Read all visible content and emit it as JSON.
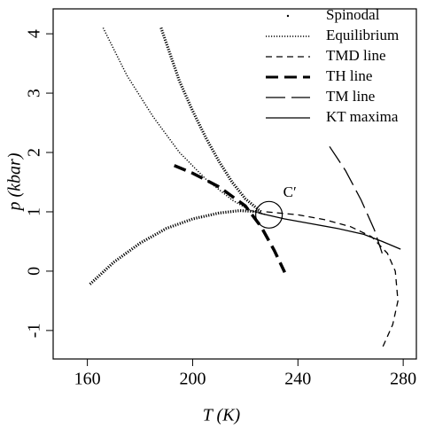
{
  "chart_data": {
    "type": "line",
    "xlabel": "T (K)",
    "ylabel": "p (kbar)",
    "xlim": [
      147,
      285
    ],
    "ylim": [
      -1.48,
      4.42
    ],
    "xticks": [
      160,
      200,
      240,
      280
    ],
    "yticks": [
      -1,
      0,
      1,
      2,
      3,
      4
    ],
    "legend": "top-right",
    "annotations": [
      {
        "text": "C′",
        "x": 229,
        "y": 0.95
      }
    ],
    "series": [
      {
        "name": "Spinodal",
        "color": "#000000",
        "style": "dotted-heavy",
        "x": [
          161,
          170,
          180,
          190,
          200,
          210,
          218,
          226,
          null,
          188,
          195,
          200,
          205,
          210,
          215,
          220,
          226
        ],
        "values": [
          -0.22,
          0.15,
          0.47,
          0.72,
          0.88,
          0.98,
          1.02,
          1.0,
          null,
          4.1,
          3.2,
          2.7,
          2.25,
          1.85,
          1.5,
          1.22,
          1.0
        ]
      },
      {
        "name": "Equilibrium",
        "color": "#000000",
        "style": "dotted",
        "x": [
          166,
          175,
          185,
          195,
          205,
          215,
          222,
          228
        ],
        "values": [
          4.1,
          3.3,
          2.6,
          2.0,
          1.55,
          1.2,
          1.02,
          0.95
        ]
      },
      {
        "name": "TMD line",
        "color": "#000000",
        "style": "dashed",
        "x": [
          228,
          240,
          250,
          260,
          268,
          274,
          277,
          278,
          276,
          272
        ],
        "values": [
          1.0,
          0.95,
          0.87,
          0.75,
          0.58,
          0.3,
          0.0,
          -0.5,
          -0.9,
          -1.3
        ]
      },
      {
        "name": "TH line",
        "color": "#000000",
        "style": "dashed-heavy",
        "x": [
          193,
          200,
          210,
          220,
          226,
          231,
          235
        ],
        "values": [
          1.78,
          1.65,
          1.42,
          1.1,
          0.75,
          0.35,
          -0.02
        ]
      },
      {
        "name": "TM line",
        "color": "#000000",
        "style": "long-dash",
        "x": [
          252,
          258,
          264,
          269,
          272
        ],
        "values": [
          2.1,
          1.7,
          1.2,
          0.7,
          0.3
        ]
      },
      {
        "name": "KT maxima",
        "color": "#000000",
        "style": "solid",
        "x": [
          225,
          235,
          245,
          255,
          265,
          272,
          279
        ],
        "values": [
          0.98,
          0.88,
          0.8,
          0.72,
          0.62,
          0.5,
          0.37
        ]
      }
    ]
  }
}
